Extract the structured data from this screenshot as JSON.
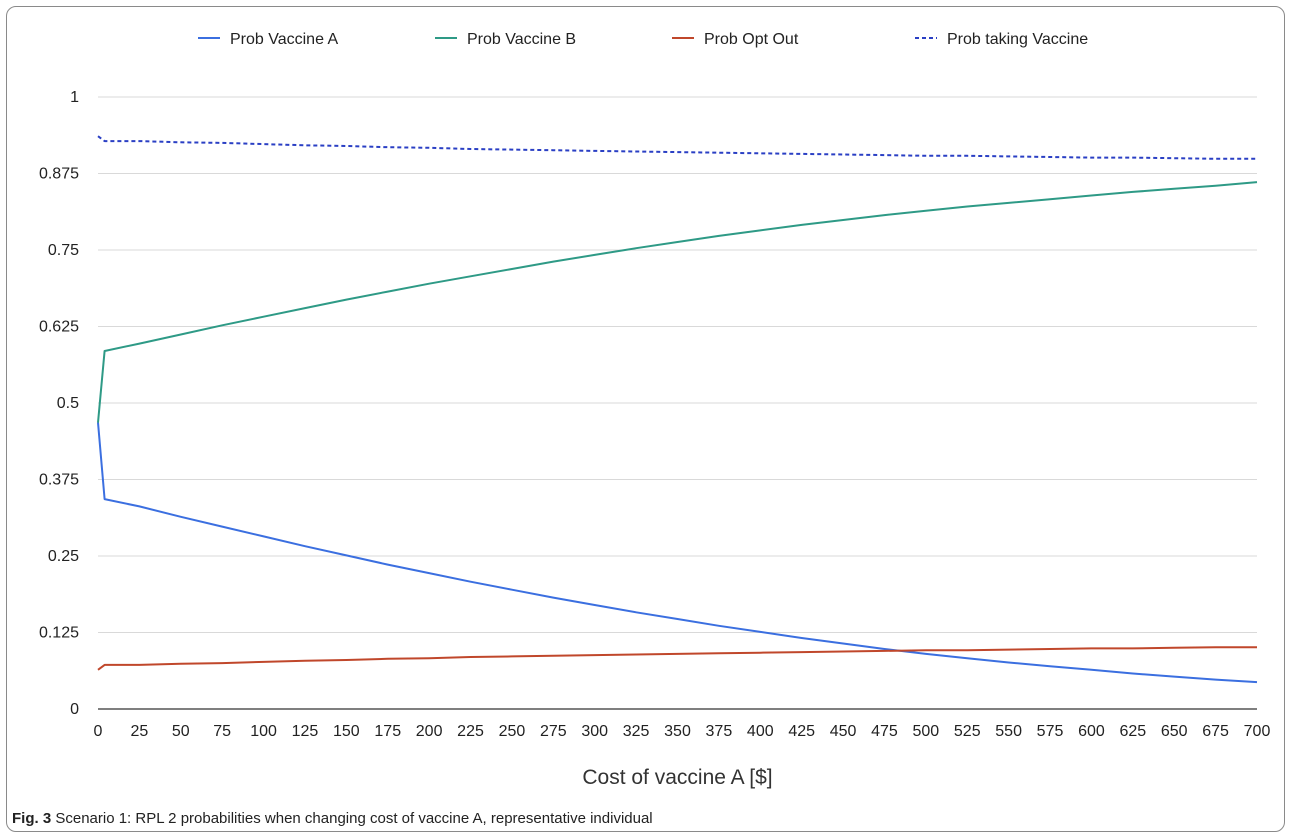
{
  "chart_data": {
    "type": "line",
    "title": "",
    "xlabel": "Cost of vaccine A [$]",
    "ylabel": "",
    "x": [
      0,
      4,
      25,
      50,
      75,
      100,
      125,
      150,
      175,
      200,
      225,
      250,
      275,
      300,
      325,
      350,
      375,
      400,
      425,
      450,
      475,
      500,
      525,
      550,
      575,
      600,
      625,
      650,
      675,
      700
    ],
    "xticks": [
      0,
      25,
      50,
      75,
      100,
      125,
      150,
      175,
      200,
      225,
      250,
      275,
      300,
      325,
      350,
      375,
      400,
      425,
      450,
      475,
      500,
      525,
      550,
      575,
      600,
      625,
      650,
      675,
      700
    ],
    "yticks": [
      0,
      0.125,
      0.25,
      0.375,
      0.5,
      0.625,
      0.75,
      0.875,
      1
    ],
    "ytick_labels": [
      "0",
      "0.125",
      "0.25",
      "0.375",
      "0.5",
      "0.625",
      "0.75",
      "0.875",
      "1"
    ],
    "xlim": [
      0,
      700
    ],
    "ylim": [
      0,
      1
    ],
    "grid": true,
    "legend_position": "top",
    "series": [
      {
        "name": "Prob Vaccine A",
        "color": "#3b6fe0",
        "style": "solid",
        "values": [
          0.468,
          0.343,
          0.331,
          0.314,
          0.298,
          0.282,
          0.266,
          0.251,
          0.236,
          0.222,
          0.208,
          0.195,
          0.182,
          0.17,
          0.158,
          0.147,
          0.136,
          0.126,
          0.116,
          0.107,
          0.098,
          0.09,
          0.083,
          0.076,
          0.07,
          0.064,
          0.058,
          0.053,
          0.048,
          0.044
        ]
      },
      {
        "name": "Prob Vaccine B",
        "color": "#2e9a86",
        "style": "solid",
        "values": [
          0.468,
          0.585,
          0.597,
          0.612,
          0.627,
          0.641,
          0.655,
          0.669,
          0.682,
          0.695,
          0.707,
          0.719,
          0.731,
          0.742,
          0.753,
          0.763,
          0.773,
          0.782,
          0.791,
          0.799,
          0.807,
          0.814,
          0.821,
          0.827,
          0.833,
          0.839,
          0.845,
          0.85,
          0.855,
          0.861
        ]
      },
      {
        "name": "Prob Opt Out",
        "color": "#c0472b",
        "style": "solid",
        "values": [
          0.064,
          0.072,
          0.072,
          0.074,
          0.075,
          0.077,
          0.079,
          0.08,
          0.082,
          0.083,
          0.085,
          0.086,
          0.087,
          0.088,
          0.089,
          0.09,
          0.091,
          0.092,
          0.093,
          0.094,
          0.095,
          0.096,
          0.096,
          0.097,
          0.098,
          0.099,
          0.099,
          0.1,
          0.101,
          0.101
        ]
      },
      {
        "name": "Prob taking Vaccine",
        "color": "#2a3fc4",
        "style": "dotted",
        "values": [
          0.936,
          0.928,
          0.928,
          0.926,
          0.925,
          0.923,
          0.921,
          0.92,
          0.918,
          0.917,
          0.915,
          0.914,
          0.913,
          0.912,
          0.911,
          0.91,
          0.909,
          0.908,
          0.907,
          0.906,
          0.905,
          0.904,
          0.904,
          0.903,
          0.902,
          0.901,
          0.901,
          0.9,
          0.899,
          0.899
        ]
      }
    ]
  },
  "caption": {
    "label": "Fig. 3",
    "text": "Scenario 1: RPL 2 probabilities when changing cost of vaccine A, representative individual"
  }
}
